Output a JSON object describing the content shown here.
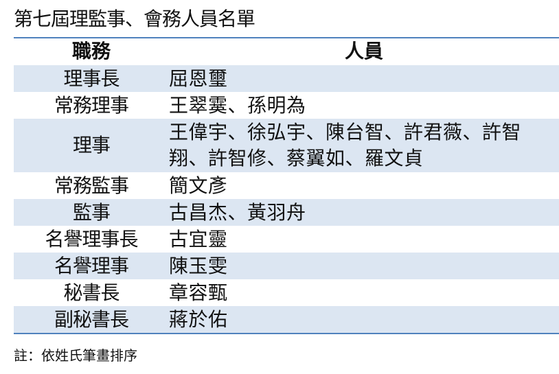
{
  "title": "第七屆理監事、會務人員名單",
  "table": {
    "headers": [
      "職務",
      "人員"
    ],
    "rows": [
      {
        "role": "理事長",
        "people": "屈恩璽"
      },
      {
        "role": "常務理事",
        "people": "王翠霙、孫明為"
      },
      {
        "role": "理事",
        "people": "王偉宇、徐弘宇、陳台智、許君薇、許智翔、許智修、蔡翼如、羅文貞"
      },
      {
        "role": "常務監事",
        "people": "簡文彥"
      },
      {
        "role": "監事",
        "people": "古昌杰、黃羽舟"
      },
      {
        "role": "名譽理事長",
        "people": "古宜靈"
      },
      {
        "role": "名譽理事",
        "people": "陳玉雯"
      },
      {
        "role": "秘書長",
        "people": "章容甄"
      },
      {
        "role": "副秘書長",
        "people": "蔣於佑"
      }
    ]
  },
  "note": "註：依姓氏筆畫排序",
  "colors": {
    "row_shade": "#dce6f2",
    "rule": "#4f81bd"
  }
}
